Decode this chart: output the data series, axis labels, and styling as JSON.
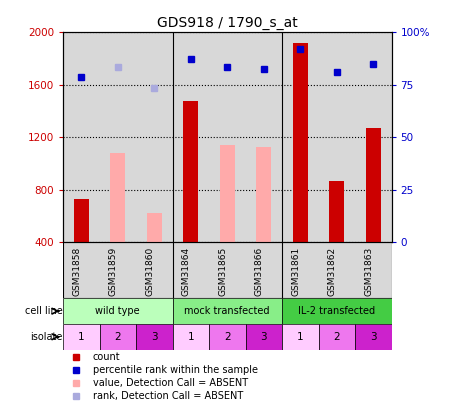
{
  "title": "GDS918 / 1790_s_at",
  "samples": [
    "GSM31858",
    "GSM31859",
    "GSM31860",
    "GSM31864",
    "GSM31865",
    "GSM31866",
    "GSM31861",
    "GSM31862",
    "GSM31863"
  ],
  "counts": [
    730,
    null,
    null,
    1480,
    null,
    null,
    1920,
    870,
    1270
  ],
  "counts_absent": [
    null,
    1080,
    620,
    null,
    1140,
    1130,
    null,
    null,
    null
  ],
  "ranks": [
    1660,
    null,
    null,
    1800,
    1740,
    1720,
    1870,
    1700,
    1760
  ],
  "ranks_absent": [
    null,
    1740,
    1580,
    null,
    null,
    null,
    null,
    null,
    null
  ],
  "ylim_left": [
    400,
    2000
  ],
  "ylim_right": [
    0,
    100
  ],
  "left_ticks": [
    400,
    800,
    1200,
    1600,
    2000
  ],
  "right_ticks": [
    0,
    25,
    50,
    75,
    100
  ],
  "right_tick_labels": [
    "0",
    "25",
    "50",
    "75",
    "100%"
  ],
  "cell_lines": [
    {
      "label": "wild type",
      "start": 0,
      "end": 3,
      "color": "#bbffbb"
    },
    {
      "label": "mock transfected",
      "start": 3,
      "end": 6,
      "color": "#88ee88"
    },
    {
      "label": "IL-2 transfected",
      "start": 6,
      "end": 9,
      "color": "#44cc44"
    }
  ],
  "isolates": [
    "1",
    "2",
    "3",
    "1",
    "2",
    "3",
    "1",
    "2",
    "3"
  ],
  "isolate_colors": [
    "#ffccff",
    "#ee77ee",
    "#cc22cc",
    "#ffccff",
    "#ee77ee",
    "#cc22cc",
    "#ffccff",
    "#ee77ee",
    "#cc22cc"
  ],
  "bar_color": "#cc0000",
  "bar_absent_color": "#ffaaaa",
  "rank_color": "#0000cc",
  "rank_absent_color": "#aaaadd",
  "background_color": "#ffffff",
  "label_color_left": "#cc0000",
  "label_color_right": "#0000cc",
  "ax_bg": "#d8d8d8"
}
